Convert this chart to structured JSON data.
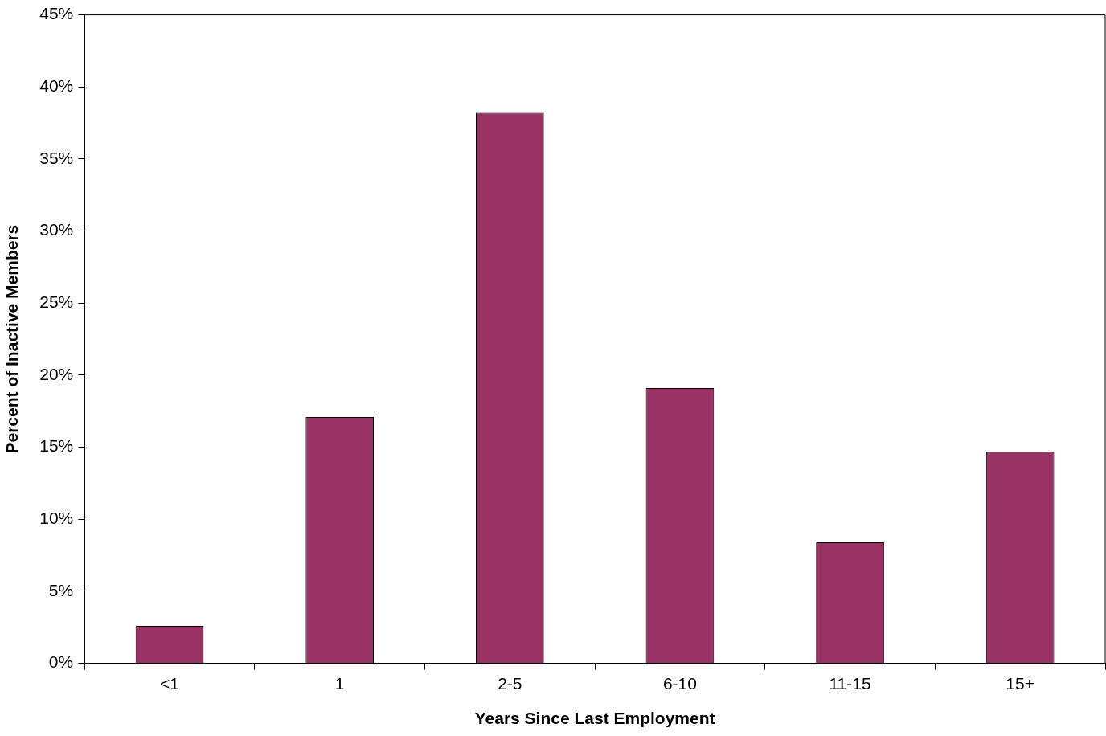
{
  "chart_data": {
    "type": "bar",
    "xlabel": "Years Since Last Employment",
    "ylabel": "Percent of Inactive Members",
    "categories": [
      "<1",
      "1",
      "2-5",
      "6-10",
      "11-15",
      "15+"
    ],
    "values": [
      2.6,
      17.1,
      38.2,
      19.1,
      8.4,
      14.7
    ],
    "color": "#993366",
    "ylim": [
      0,
      45
    ],
    "yticks": [
      {
        "value": 0,
        "label": "0%"
      },
      {
        "value": 5,
        "label": "5%"
      },
      {
        "value": 10,
        "label": "10%"
      },
      {
        "value": 15,
        "label": "15%"
      },
      {
        "value": 20,
        "label": "20%"
      },
      {
        "value": 25,
        "label": "25%"
      },
      {
        "value": 30,
        "label": "30%"
      },
      {
        "value": 35,
        "label": "35%"
      },
      {
        "value": 40,
        "label": "40%"
      },
      {
        "value": 45,
        "label": "45%"
      }
    ],
    "grid": false,
    "legend": false
  }
}
